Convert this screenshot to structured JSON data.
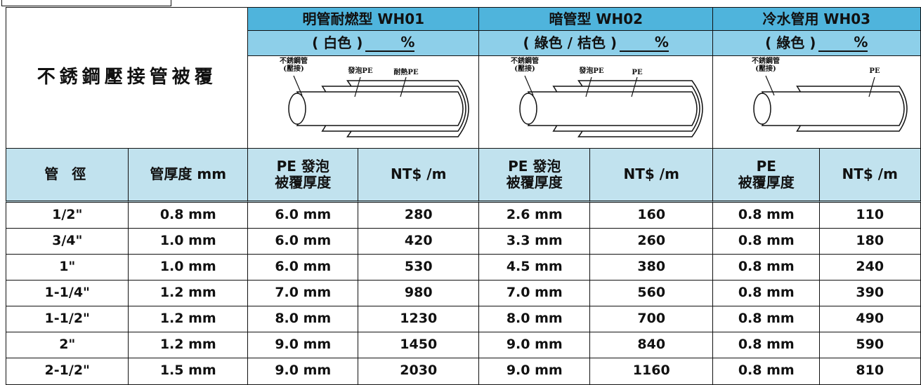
{
  "top_left_label": "不銹鋼壓接管被覆",
  "products": [
    {
      "name": "明管耐燃型  WH01",
      "color": "( 白色 )",
      "unit": "%",
      "diagram_labels": [
        "不銹鋼管\n(壓接)",
        "發泡PE",
        "耐熱PE"
      ]
    },
    {
      "name": "暗管型  WH02",
      "color": "( 綠色 / 桔色 )",
      "unit": "%",
      "diagram_labels": [
        "不銹鋼管\n(壓接)",
        "發泡PE",
        "PE"
      ]
    },
    {
      "name": "冷水管用  WH03",
      "color": "( 綠色 )",
      "unit": "%",
      "diagram_labels": [
        "不銹鋼管\n(壓接)",
        "PE"
      ]
    }
  ],
  "column_headers": [
    "管 徑",
    "管厚度 mm",
    "PE 發泡\n被覆厚度",
    "NT$ /m",
    "PE 發泡\n被覆厚度",
    "NT$ /m",
    "PE\n被覆厚度",
    "NT$ /m"
  ],
  "rows": [
    [
      "1/2\"",
      "0.8 mm",
      "6.0 mm",
      "280",
      "2.6 mm",
      "160",
      "0.8 mm",
      "110"
    ],
    [
      "3/4\"",
      "1.0 mm",
      "6.0 mm",
      "420",
      "3.3 mm",
      "260",
      "0.8 mm",
      "180"
    ],
    [
      "1\"",
      "1.0 mm",
      "6.0 mm",
      "530",
      "4.5 mm",
      "380",
      "0.8 mm",
      "240"
    ],
    [
      "1-1/4\"",
      "1.2 mm",
      "7.0 mm",
      "980",
      "7.0 mm",
      "560",
      "0.8 mm",
      "390"
    ],
    [
      "1-1/2\"",
      "1.2 mm",
      "8.0 mm",
      "1230",
      "8.0 mm",
      "700",
      "0.8 mm",
      "490"
    ],
    [
      "2\"",
      "1.2 mm",
      "9.0 mm",
      "1450",
      "9.0 mm",
      "840",
      "0.8 mm",
      "590"
    ],
    [
      "2-1/2\"",
      "1.5 mm",
      "9.0 mm",
      "2030",
      "9.0 mm",
      "1160",
      "0.8 mm",
      "810"
    ]
  ]
}
